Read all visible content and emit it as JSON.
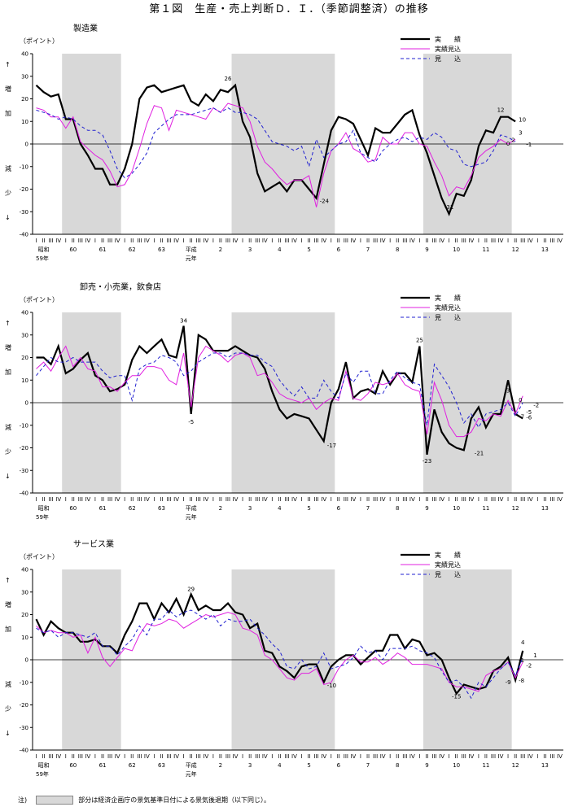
{
  "page_title": "第１図　生産・売上判断Ｄ．Ｉ．（季節調整済）の推移",
  "legend_labels": {
    "actual": "実　　績",
    "forecast_actual": "実績見込",
    "forecast": "見　　込"
  },
  "y_unit_label": "（ポイント）",
  "y_up_label": [
    "↑",
    "増",
    "加"
  ],
  "y_down_label": [
    "減",
    "少",
    "↓"
  ],
  "x_quarter_labels": [
    "I",
    "II",
    "III",
    "IV"
  ],
  "x_year_labels": [
    "昭和",
    "60",
    "61",
    "62",
    "63",
    "平成",
    "2",
    "3",
    "4",
    "5",
    "6",
    "7",
    "8",
    "9",
    "10",
    "11",
    "12",
    "13"
  ],
  "x_year_sub": [
    "59年",
    "元年"
  ],
  "footnote": {
    "prefix": "注)",
    "text": "部分は経済企画庁の景気基準日付による景気後退期（以下同じ）。"
  },
  "chart_data": [
    {
      "type": "line",
      "title": "製造業",
      "ylim": [
        -40,
        40
      ],
      "yticks": [
        40,
        30,
        20,
        10,
        0,
        -10,
        -20,
        -30,
        -40
      ],
      "x_start": "1984Q1",
      "shaded_periods": [
        [
          4,
          12
        ],
        [
          27,
          41
        ],
        [
          53,
          65
        ]
      ],
      "series": [
        {
          "name": "実績",
          "values": [
            26,
            23,
            21,
            22,
            11,
            11,
            0,
            -5,
            -11,
            -11,
            -18,
            -18,
            -11,
            0,
            20,
            25,
            26,
            23,
            24,
            25,
            26,
            19,
            17,
            22,
            19,
            24,
            23,
            26,
            10,
            3,
            -13,
            -21,
            -19,
            -17,
            -21,
            -16,
            -16,
            -20,
            -24,
            -9,
            6,
            12,
            11,
            9,
            2,
            -5,
            7,
            5,
            5,
            9,
            13,
            15,
            4,
            -4,
            -14,
            -24,
            -31,
            -22,
            -23,
            -16,
            -1,
            6,
            5,
            12,
            12,
            10
          ]
        },
        {
          "name": "実績見込",
          "values": [
            16,
            15,
            12,
            12,
            7,
            12,
            1,
            -2,
            -5,
            -7,
            -12,
            -19,
            -18,
            -12,
            -2,
            9,
            17,
            16,
            6,
            15,
            14,
            13,
            12,
            11,
            16,
            14,
            18,
            17,
            16,
            10,
            -1,
            -8,
            -11,
            -15,
            -18,
            -16,
            -16,
            -14,
            -28,
            -13,
            -3,
            0,
            5,
            -2,
            -4,
            -8,
            -7,
            3,
            0,
            0,
            5,
            5,
            0,
            -1,
            -8,
            -14,
            -23,
            -19,
            -20,
            -14,
            -6,
            -3,
            -1,
            2,
            0,
            2
          ]
        },
        {
          "name": "見込",
          "values": [
            15,
            14,
            13,
            11,
            12,
            11,
            8,
            6,
            6,
            4,
            -3,
            -11,
            -15,
            -13,
            -9,
            -4,
            5,
            8,
            11,
            13,
            13,
            13,
            14,
            15,
            16,
            14,
            16,
            14,
            14,
            13,
            11,
            6,
            1,
            0,
            -1,
            -3,
            -1,
            -10,
            2,
            -6,
            -3,
            0,
            1,
            6,
            -4,
            -6,
            -8,
            -3,
            0,
            2,
            3,
            1,
            3,
            2,
            5,
            3,
            -2,
            -3,
            -9,
            -10,
            -9,
            -8,
            -3,
            4,
            3,
            1
          ]
        }
      ],
      "annotations": [
        "26",
        "-24",
        "-31",
        "12",
        "10",
        "3",
        "0",
        "2",
        "-1"
      ]
    },
    {
      "type": "line",
      "title": "卸売・小売業，飲食店",
      "ylim": [
        -40,
        40
      ],
      "yticks": [
        40,
        30,
        20,
        10,
        0,
        -10,
        -20,
        -30,
        -40
      ],
      "x_start": "1984Q1",
      "shaded_periods": [
        [
          4,
          12
        ],
        [
          27,
          41
        ],
        [
          53,
          65
        ]
      ],
      "series": [
        {
          "name": "実績",
          "values": [
            20,
            20,
            17,
            25,
            13,
            15,
            19,
            22,
            12,
            10,
            5,
            6,
            8,
            19,
            25,
            22,
            25,
            28,
            21,
            20,
            34,
            -5,
            30,
            28,
            23,
            23,
            23,
            25,
            23,
            21,
            20,
            15,
            5,
            -3,
            -7,
            -5,
            -6,
            -7,
            -12,
            -17,
            0,
            6,
            18,
            2,
            5,
            6,
            4,
            14,
            8,
            13,
            13,
            9,
            25,
            -23,
            -3,
            -13,
            -18,
            -20,
            -21,
            -7,
            -2,
            -11,
            -5,
            -5,
            10,
            -5,
            -7
          ]
        },
        {
          "name": "実績見込",
          "values": [
            15,
            18,
            14,
            20,
            25,
            16,
            20,
            15,
            14,
            7,
            7,
            5,
            9,
            12,
            12,
            16,
            16,
            15,
            10,
            8,
            22,
            -2,
            20,
            25,
            23,
            21,
            18,
            21,
            22,
            20,
            12,
            13,
            9,
            4,
            2,
            1,
            0,
            2,
            -3,
            0,
            2,
            1,
            14,
            2,
            1,
            4,
            9,
            8,
            9,
            13,
            8,
            6,
            5,
            -14,
            9,
            1,
            -10,
            -15,
            -15,
            -13,
            -7,
            -8,
            -5,
            -6,
            1,
            -5,
            3
          ]
        },
        {
          "name": "見込",
          "values": [
            12,
            16,
            20,
            18,
            18,
            20,
            18,
            18,
            18,
            14,
            11,
            12,
            12,
            1,
            15,
            17,
            18,
            21,
            20,
            18,
            12,
            14,
            18,
            20,
            22,
            22,
            20,
            22,
            22,
            21,
            21,
            18,
            16,
            10,
            6,
            3,
            7,
            2,
            2,
            10,
            5,
            2,
            13,
            9,
            14,
            14,
            4,
            4,
            10,
            14,
            11,
            9,
            8,
            -10,
            17,
            12,
            7,
            0,
            -9,
            -5,
            -11,
            -5,
            -4,
            -3,
            0,
            -6,
            0
          ]
        }
      ],
      "annotations": [
        "34",
        "-5",
        "-17",
        "25",
        "-23",
        "-21",
        "3",
        "0",
        "-7",
        "-5",
        "-6",
        "-2"
      ]
    },
    {
      "type": "line",
      "title": "サービス業",
      "ylim": [
        -40,
        40
      ],
      "yticks": [
        40,
        30,
        20,
        10,
        0,
        -10,
        -20,
        -30,
        -40
      ],
      "x_start": "1984Q1",
      "shaded_periods": [
        [
          4,
          12
        ],
        [
          27,
          41
        ],
        [
          53,
          65
        ]
      ],
      "series": [
        {
          "name": "実績",
          "values": [
            18,
            11,
            17,
            14,
            12,
            12,
            8,
            8,
            9,
            6,
            6,
            3,
            11,
            17,
            25,
            25,
            18,
            25,
            21,
            27,
            20,
            29,
            22,
            24,
            22,
            22,
            25,
            21,
            20,
            14,
            16,
            4,
            3,
            -3,
            -5,
            -8,
            -3,
            -2,
            -2,
            -10,
            -3,
            0,
            2,
            2,
            -2,
            1,
            4,
            4,
            11,
            11,
            5,
            9,
            8,
            2,
            3,
            0,
            -8,
            -15,
            -11,
            -12,
            -13,
            -12,
            -5,
            -3,
            1,
            -9,
            4
          ]
        },
        {
          "name": "実績見込",
          "values": [
            15,
            12,
            13,
            12,
            12,
            10,
            11,
            3,
            10,
            1,
            -3,
            1,
            5,
            4,
            11,
            16,
            15,
            16,
            18,
            17,
            14,
            16,
            18,
            20,
            19,
            20,
            21,
            20,
            14,
            13,
            11,
            2,
            0,
            -4,
            -8,
            -9,
            -6,
            -6,
            -4,
            -11,
            -10,
            -4,
            0,
            2,
            -1,
            -1,
            1,
            -2,
            0,
            3,
            1,
            -2,
            -2,
            -2,
            -3,
            -4,
            -10,
            -12,
            -12,
            -13,
            -14,
            -7,
            -5,
            -4,
            -1,
            -8,
            -1
          ]
        },
        {
          "name": "見込",
          "values": [
            14,
            12,
            13,
            10,
            12,
            12,
            11,
            10,
            12,
            6,
            6,
            2,
            6,
            9,
            15,
            11,
            18,
            18,
            22,
            19,
            21,
            22,
            20,
            18,
            20,
            15,
            18,
            17,
            17,
            18,
            14,
            11,
            7,
            4,
            -3,
            -4,
            0,
            -4,
            -3,
            3,
            -4,
            -3,
            -2,
            1,
            6,
            3,
            4,
            0,
            5,
            5,
            5,
            6,
            4,
            3,
            1,
            -5,
            -10,
            -9,
            -12,
            -17,
            -10,
            -12,
            -8,
            -4,
            -1,
            -7,
            1
          ]
        }
      ],
      "annotations": [
        "29",
        "-10",
        "-15",
        "4",
        "-9",
        "-1",
        "1",
        "-8",
        "-2"
      ]
    }
  ]
}
